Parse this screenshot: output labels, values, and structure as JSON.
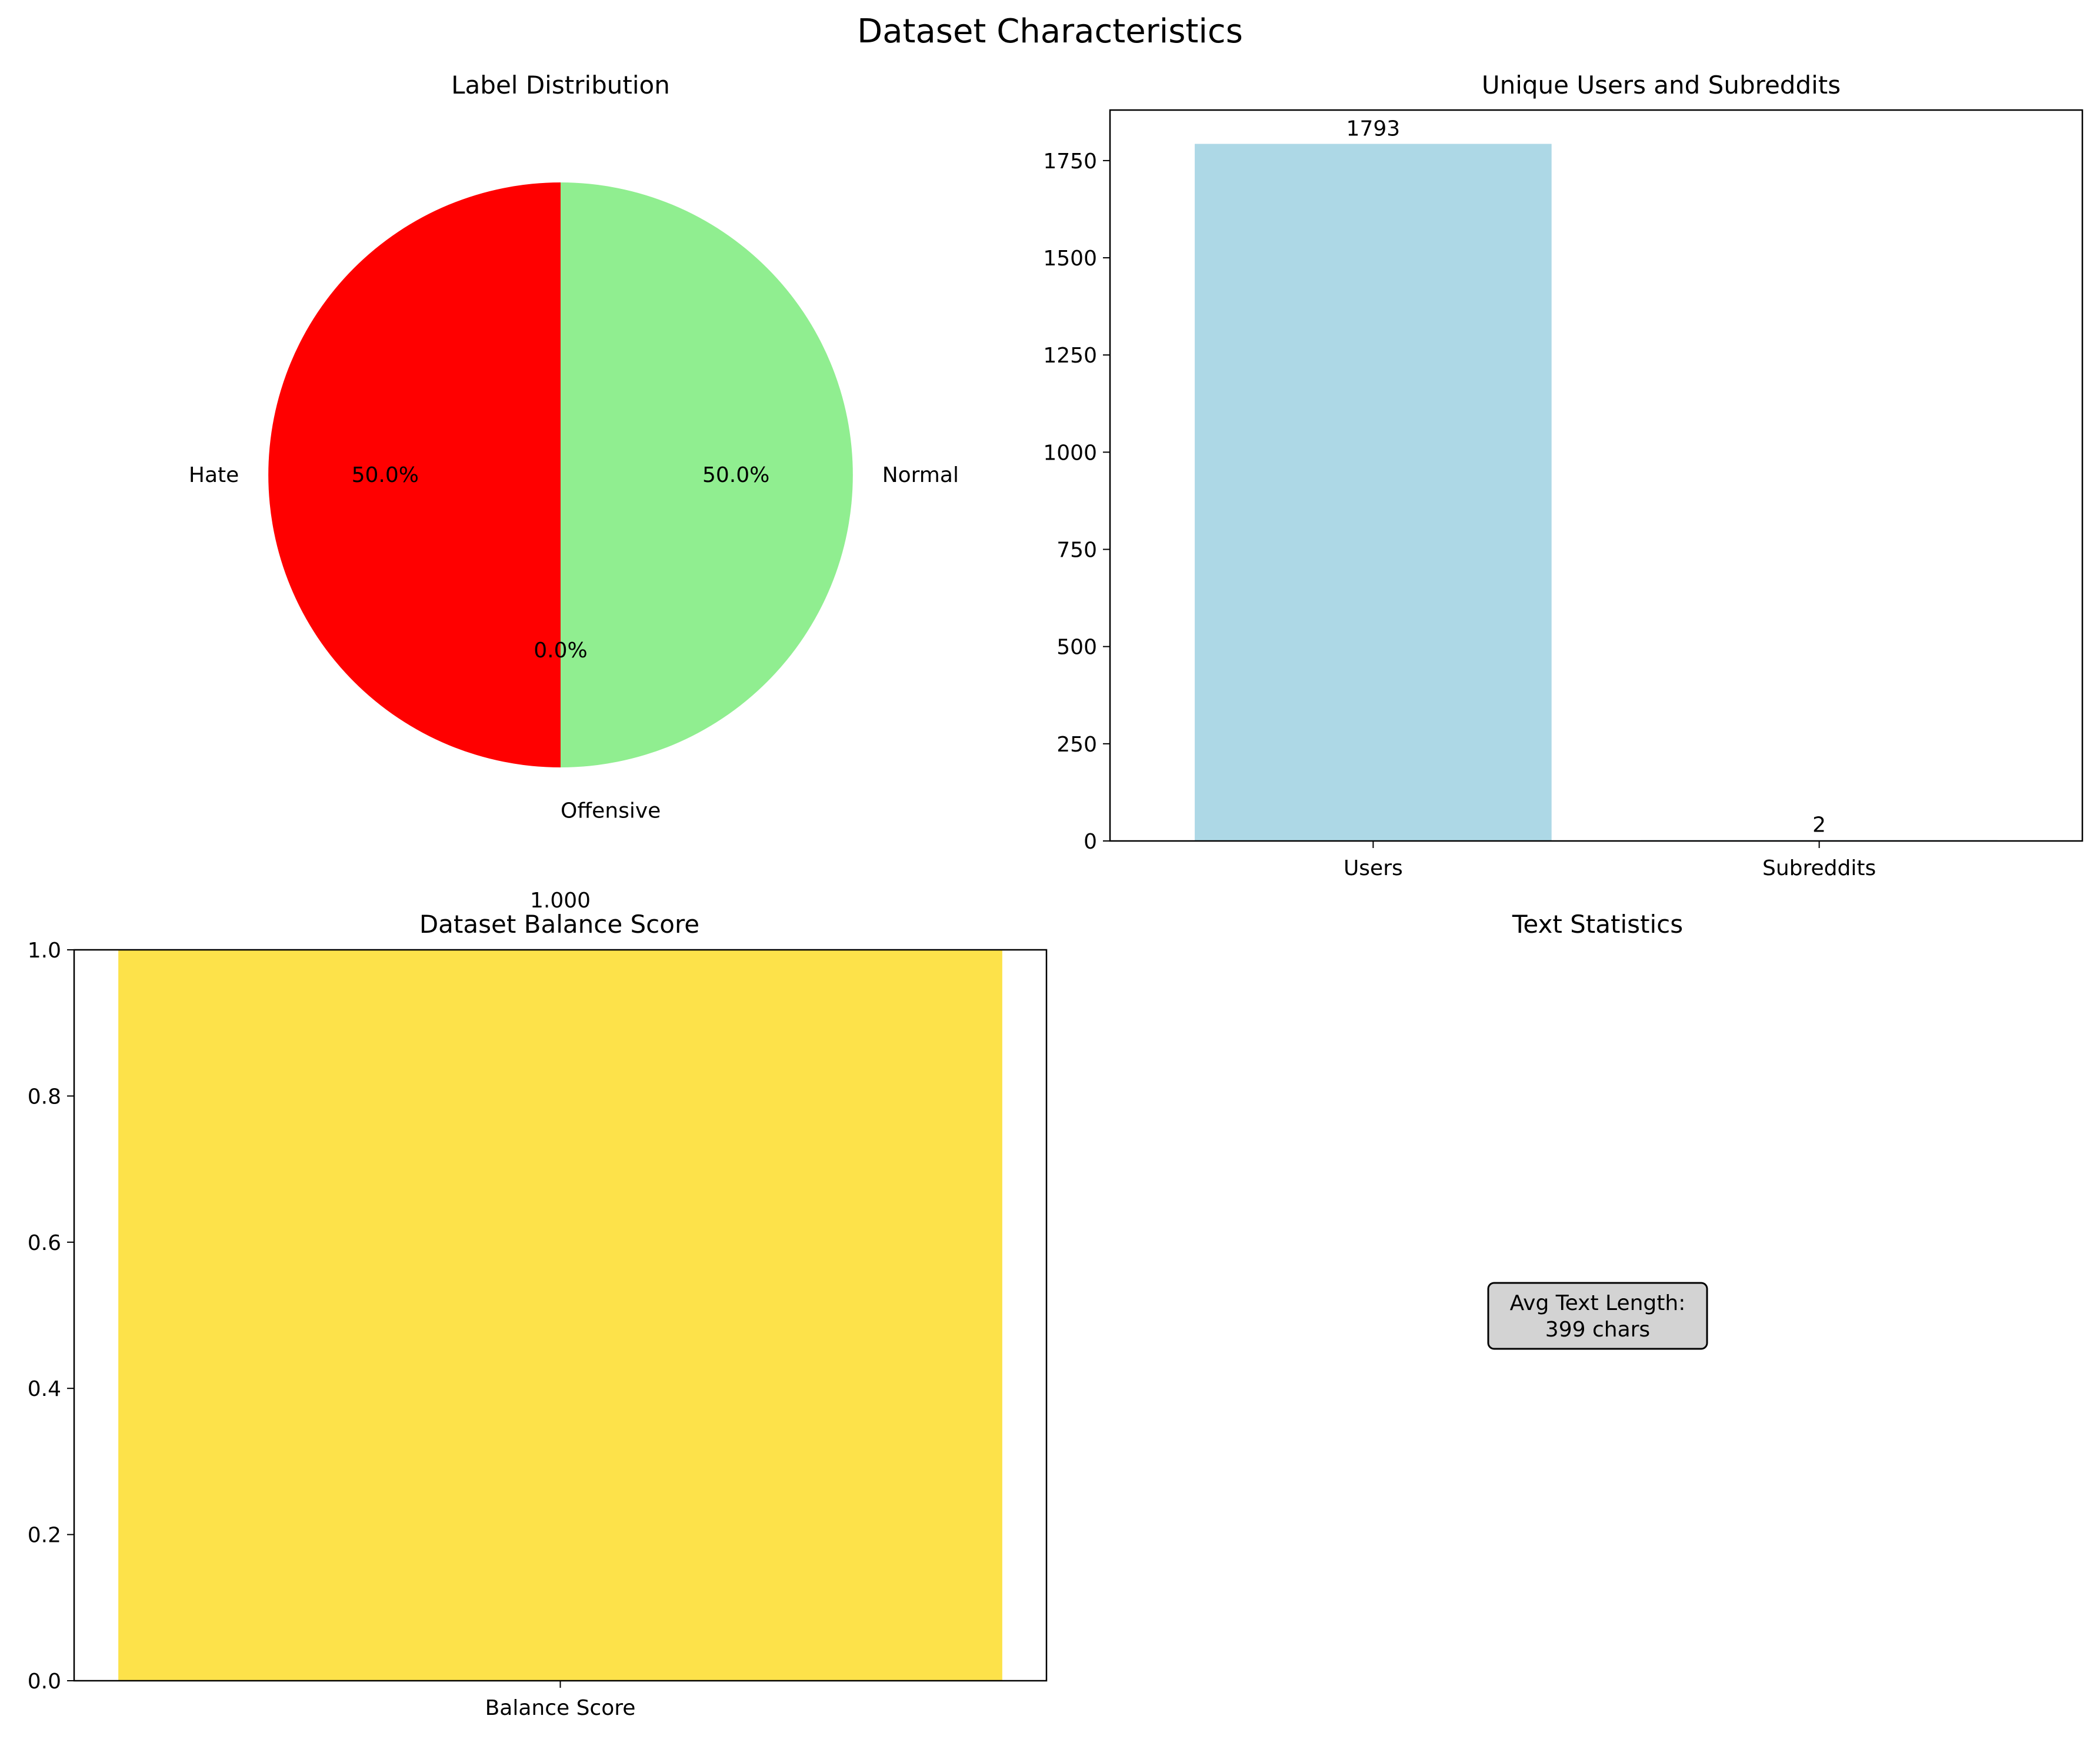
{
  "figure": {
    "title": "Dataset Characteristics"
  },
  "chart_data": [
    {
      "type": "pie",
      "title": "Label Distribution",
      "labels": [
        "Hate",
        "Offensive",
        "Normal"
      ],
      "values": [
        50.0,
        0.0,
        50.0
      ],
      "autopct": [
        "50.0%",
        "0.0%",
        "50.0%"
      ],
      "colors": [
        "#ff0000",
        "#ffa500",
        "#90ee90"
      ]
    },
    {
      "type": "bar",
      "title": "Unique Users and Subreddits",
      "categories": [
        "Users",
        "Subreddits"
      ],
      "values": [
        1793,
        2
      ],
      "data_labels": [
        "1793",
        "2"
      ],
      "ylim": [
        0,
        1880
      ],
      "yticks": [
        0,
        250,
        500,
        750,
        1000,
        1250,
        1500,
        1750
      ],
      "color": "#add8e6",
      "grid": false
    },
    {
      "type": "bar",
      "title": "Dataset Balance Score",
      "categories": [
        "Balance Score"
      ],
      "values": [
        1.0
      ],
      "data_labels": [
        "1.000"
      ],
      "ylim": [
        0,
        1.0
      ],
      "yticks": [
        "0.0",
        "0.2",
        "0.4",
        "0.6",
        "0.8",
        "1.0"
      ],
      "color": "#fde24a",
      "grid": false
    },
    {
      "type": "table",
      "title": "Text Statistics",
      "text_lines": [
        "Avg Text Length:",
        "399 chars"
      ],
      "box_color": "#d3d3d3"
    }
  ]
}
